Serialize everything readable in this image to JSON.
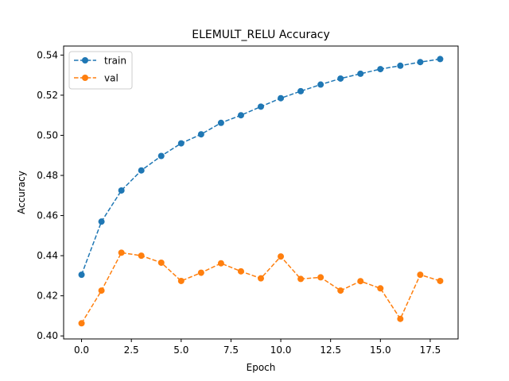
{
  "chart_data": {
    "type": "line",
    "title": "ELEMULT_RELU Accuracy",
    "xlabel": "Epoch",
    "ylabel": "Accuracy",
    "x": [
      0,
      1,
      2,
      3,
      4,
      5,
      6,
      7,
      8,
      9,
      10,
      11,
      12,
      13,
      14,
      15,
      16,
      17,
      18
    ],
    "xlim": [
      -0.9,
      18.9
    ],
    "ylim": [
      0.3985,
      0.5445
    ],
    "xticks": [
      0.0,
      2.5,
      5.0,
      7.5,
      10.0,
      12.5,
      15.0,
      17.5
    ],
    "xtick_labels": [
      "0.0",
      "2.5",
      "5.0",
      "7.5",
      "10.0",
      "12.5",
      "15.0",
      "17.5"
    ],
    "yticks": [
      0.4,
      0.42,
      0.44,
      0.46,
      0.48,
      0.5,
      0.52,
      0.54
    ],
    "ytick_labels": [
      "0.40",
      "0.42",
      "0.44",
      "0.46",
      "0.48",
      "0.50",
      "0.52",
      "0.54"
    ],
    "grid": false,
    "legend_position": "top-left",
    "series": [
      {
        "name": "train",
        "color": "#1f77b4",
        "line_style": "dashed",
        "marker": "circle",
        "values": [
          0.4305,
          0.457,
          0.4725,
          0.4825,
          0.4897,
          0.496,
          0.5005,
          0.5062,
          0.51,
          0.5143,
          0.5185,
          0.522,
          0.5253,
          0.5283,
          0.5307,
          0.533,
          0.5347,
          0.5365,
          0.538
        ]
      },
      {
        "name": "val",
        "color": "#ff7f0e",
        "line_style": "dashed",
        "marker": "circle",
        "values": [
          0.4063,
          0.4226,
          0.4415,
          0.44,
          0.4365,
          0.4274,
          0.4315,
          0.4362,
          0.4322,
          0.4287,
          0.4396,
          0.4284,
          0.4292,
          0.4226,
          0.4273,
          0.4237,
          0.4085,
          0.4305,
          0.4274
        ]
      }
    ]
  }
}
